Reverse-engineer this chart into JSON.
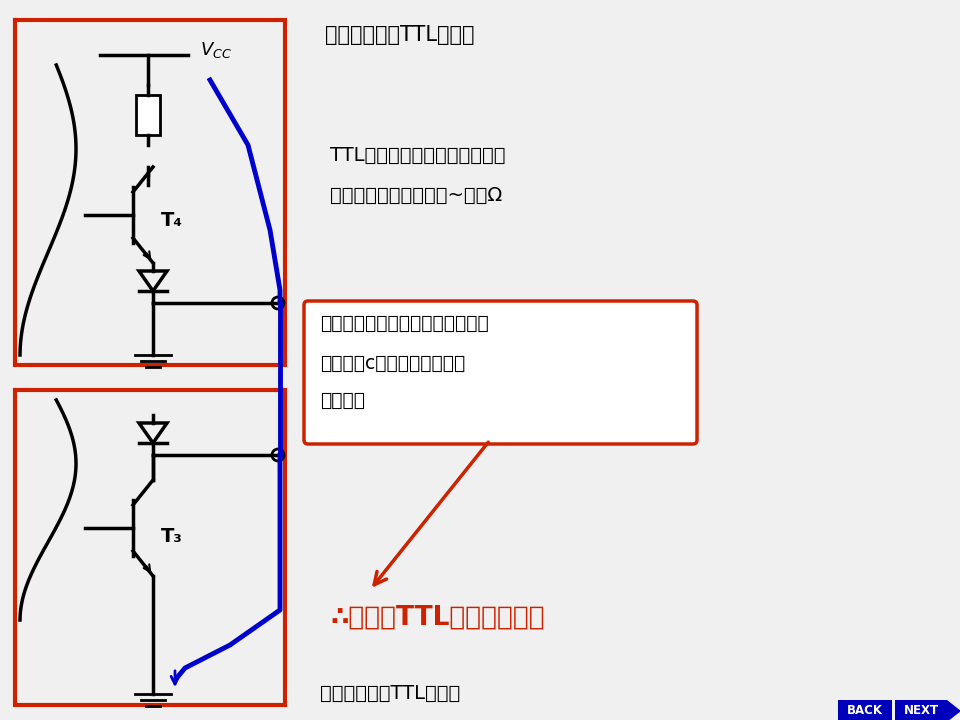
{
  "bg_color": "#f0f0f0",
  "text_top_right": "输出高电平的TTL与非门",
  "text_mid_right1": "TTL与非门无论开通或关断，其",
  "text_mid_right2": "输出电阻都很低。几十~几百Ω",
  "box_color": "#cc2200",
  "label_T4": "T₄",
  "label_T3": "T₃",
  "label_Vcc": "$V_{CC}$",
  "label_bottom": "输出低电平的TTL与非门",
  "ann_text1": "形成低阻通路，产生很大电流，超",
  "ann_text2": "过管子的c极最大允许电流，",
  "ann_text3": "烧毁管子",
  "conclusion_text": "∴一般的TTL电路不能线与",
  "blue_color": "#0000cc",
  "red_color": "#cc2200",
  "nav_color": "#0000bb"
}
